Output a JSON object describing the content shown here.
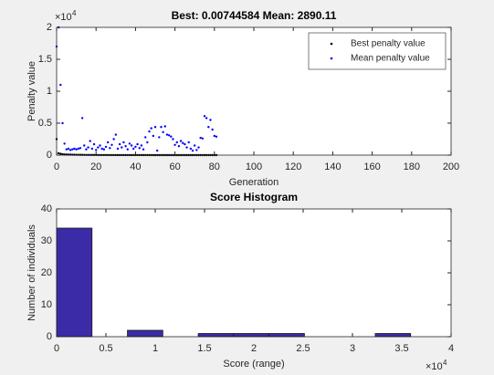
{
  "chart_data": [
    {
      "type": "scatter",
      "title": "Best: 0.00744584 Mean: 2890.11",
      "x_label": "Generation",
      "y_label": "Penalty value",
      "y_multiplier": "×10",
      "y_multiplier_exponent": "4",
      "x": [
        0,
        1,
        2,
        3,
        4,
        5,
        6,
        7,
        8,
        9,
        10,
        11,
        12,
        13,
        14,
        15,
        16,
        17,
        18,
        19,
        20,
        21,
        22,
        23,
        24,
        25,
        26,
        27,
        28,
        29,
        30,
        31,
        32,
        33,
        34,
        35,
        36,
        37,
        38,
        39,
        40,
        41,
        42,
        43,
        44,
        45,
        46,
        47,
        48,
        49,
        50,
        51,
        52,
        53,
        54,
        55,
        56,
        57,
        58,
        59,
        60,
        61,
        62,
        63,
        64,
        65,
        66,
        67,
        68,
        69,
        70,
        71,
        72,
        73,
        74,
        75,
        76,
        77,
        78,
        79,
        80,
        81
      ],
      "series": [
        {
          "name": "Best penalty value",
          "color": "#000000",
          "values": [
            2500,
            300,
            200,
            150,
            100,
            100,
            80,
            80,
            60,
            60,
            50,
            50,
            40,
            40,
            30,
            30,
            30,
            20,
            20,
            20,
            20,
            10,
            10,
            10,
            10,
            10,
            10,
            5,
            5,
            5,
            5,
            5,
            5,
            5,
            5,
            5,
            5,
            2,
            2,
            2,
            2,
            2,
            2,
            2,
            2,
            2,
            2,
            2,
            1,
            1,
            1,
            1,
            1,
            1,
            1,
            1,
            1,
            1,
            1,
            1,
            1,
            0.5,
            0.5,
            0.5,
            0.5,
            0.5,
            0.5,
            0.5,
            0.5,
            0.5,
            0.5,
            0.1,
            0.1,
            0.1,
            0.1,
            0.1,
            0.1,
            0.1,
            0.1,
            0.01,
            0.01,
            0.00744584
          ]
        },
        {
          "name": "Mean penalty value",
          "color": "#0000ff",
          "values": [
            17000,
            20000,
            11000,
            5000,
            1800,
            900,
            1000,
            800,
            900,
            1000,
            900,
            1000,
            1100,
            5800,
            1500,
            900,
            1200,
            2200,
            1000,
            1700,
            800,
            1200,
            1500,
            1000,
            900,
            1300,
            2000,
            1100,
            1600,
            2500,
            3200,
            1000,
            1700,
            1200,
            2000,
            1400,
            900,
            1800,
            1500,
            1000,
            1300,
            1700,
            1100,
            1500,
            900,
            2800,
            2000,
            3700,
            4200,
            3000,
            4400,
            700,
            2800,
            4400,
            3600,
            4500,
            3200,
            3100,
            2900,
            2500,
            1600,
            2000,
            1400,
            2200,
            1900,
            1700,
            1200,
            2000,
            1000,
            700,
            1500,
            800,
            1200,
            2700,
            2600,
            6100,
            5800,
            4400,
            5500,
            4000,
            3000,
            2890.11
          ]
        }
      ],
      "xlim": [
        0,
        200
      ],
      "xticks": [
        0,
        20,
        40,
        60,
        80,
        100,
        120,
        140,
        160,
        180,
        200
      ],
      "ylim": [
        0,
        20000
      ],
      "yticks": [
        0,
        {
          "value": 5000,
          "label": "0.5"
        },
        {
          "value": 10000,
          "label": "1"
        },
        {
          "value": 15000,
          "label": "1.5"
        },
        {
          "value": 20000,
          "label": "2"
        }
      ],
      "legend": "northeast"
    },
    {
      "type": "histogram",
      "title": "Score Histogram",
      "x_label": "Score (range)",
      "y_label": "Number of individuals",
      "x_multiplier": "×10",
      "x_multiplier_exponent": "4",
      "color": "#3b2ba6",
      "bins": [
        0,
        3590,
        7180,
        10770,
        14360,
        17950,
        21540,
        25130,
        28720,
        32310,
        35900
      ],
      "values": [
        34,
        0,
        2,
        0,
        1,
        1,
        1,
        0,
        0,
        1
      ],
      "xlim": [
        0,
        40000
      ],
      "xticks": [
        0,
        {
          "value": 5000,
          "label": "0.5"
        },
        {
          "value": 10000,
          "label": "1"
        },
        {
          "value": 15000,
          "label": "1.5"
        },
        {
          "value": 20000,
          "label": "2"
        },
        {
          "value": 25000,
          "label": "2.5"
        },
        {
          "value": 30000,
          "label": "3"
        },
        {
          "value": 35000,
          "label": "3.5"
        },
        {
          "value": 40000,
          "label": "4"
        }
      ],
      "ylim": [
        0,
        40
      ],
      "yticks": [
        0,
        10,
        20,
        30,
        40
      ]
    }
  ]
}
